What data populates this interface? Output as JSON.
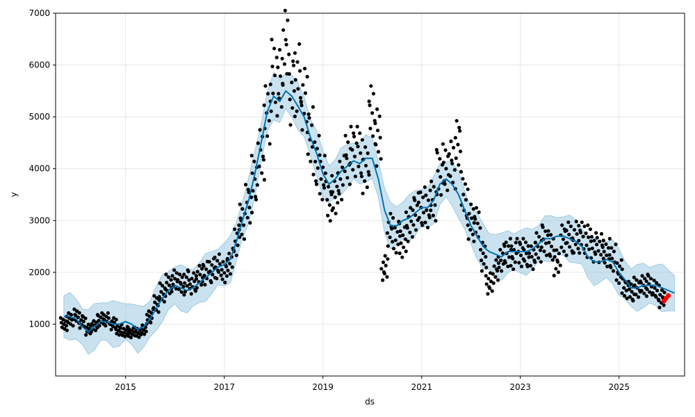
{
  "chart_data": {
    "type": "scatter",
    "title": "",
    "xlabel": "ds",
    "ylabel": "y",
    "xlim": [
      "2013-08-01",
      "2026-05-01"
    ],
    "ylim": [
      0,
      7000
    ],
    "xticks": [
      "2015",
      "2017",
      "2019",
      "2021",
      "2023",
      "2025"
    ],
    "yticks": [
      1000,
      2000,
      3000,
      4000,
      5000,
      6000,
      7000
    ],
    "grid": true,
    "colors": {
      "observed": "#000000",
      "forecast_line": "#0072B2",
      "uncertainty": "#9ecae1",
      "recent_points": "#ff0000"
    },
    "series": [
      {
        "role": "observed",
        "x": [
          "2013-10-01",
          "2013-11-15",
          "2014-01-01",
          "2014-02-15",
          "2014-04-01",
          "2014-05-15",
          "2014-07-01",
          "2014-08-15",
          "2014-10-01",
          "2014-11-15",
          "2015-01-01",
          "2015-02-15",
          "2015-04-01",
          "2015-05-15",
          "2015-07-01",
          "2015-08-15",
          "2015-10-01",
          "2015-11-15",
          "2016-01-01",
          "2016-02-15",
          "2016-04-01",
          "2016-05-15",
          "2016-07-01",
          "2016-08-15",
          "2016-10-01",
          "2016-11-15",
          "2017-01-01",
          "2017-02-15",
          "2017-04-01",
          "2017-05-15",
          "2017-07-01",
          "2017-08-15",
          "2017-10-01",
          "2017-11-15",
          "2018-01-01",
          "2018-02-15",
          "2018-04-01",
          "2018-05-15",
          "2018-07-01",
          "2018-08-15",
          "2018-10-01",
          "2018-11-15",
          "2019-01-01",
          "2019-02-15",
          "2019-04-01",
          "2019-05-15",
          "2019-07-01",
          "2019-08-15",
          "2019-10-01",
          "2019-11-15",
          "2020-01-01",
          "2020-02-15",
          "2020-04-01",
          "2020-05-15",
          "2020-07-01",
          "2020-08-15",
          "2020-10-01",
          "2020-11-15",
          "2021-01-01",
          "2021-02-15",
          "2021-04-01",
          "2021-05-15",
          "2021-07-01",
          "2021-08-15",
          "2021-10-01",
          "2021-11-15",
          "2022-01-01",
          "2022-02-15",
          "2022-04-01",
          "2022-05-15",
          "2022-07-01",
          "2022-08-15",
          "2022-10-01",
          "2022-11-15",
          "2023-01-01",
          "2023-02-15",
          "2023-04-01",
          "2023-05-15",
          "2023-07-01",
          "2023-08-15",
          "2023-10-01",
          "2023-11-15",
          "2024-01-01",
          "2024-02-15",
          "2024-04-01",
          "2024-05-15",
          "2024-07-01",
          "2024-08-15",
          "2024-10-01",
          "2024-11-15",
          "2025-01-01",
          "2025-02-15",
          "2025-04-01",
          "2025-05-15",
          "2025-07-01",
          "2025-08-15",
          "2025-10-01",
          "2025-11-15"
        ],
        "y": [
          1000,
          1100,
          1150,
          1050,
          900,
          950,
          1100,
          1100,
          1000,
          900,
          850,
          830,
          850,
          900,
          1150,
          1400,
          1600,
          1750,
          1850,
          1750,
          1850,
          1800,
          1900,
          2000,
          2050,
          2100,
          2050,
          2200,
          2600,
          3000,
          3300,
          3800,
          4300,
          5000,
          5800,
          5700,
          6300,
          5500,
          5800,
          5300,
          4700,
          4200,
          3800,
          3400,
          3500,
          3800,
          4200,
          4300,
          4300,
          4000,
          5000,
          4600,
          2100,
          2800,
          2700,
          2600,
          2900,
          3200,
          3300,
          3200,
          3400,
          3900,
          4000,
          4100,
          4400,
          3400,
          3000,
          2900,
          2300,
          1800,
          2000,
          2300,
          2400,
          2300,
          2400,
          2400,
          2300,
          2500,
          2600,
          2500,
          2200,
          2600,
          2650,
          2700,
          2650,
          2600,
          2500,
          2450,
          2400,
          2300,
          2000,
          1700,
          1650,
          1700,
          1750,
          1750,
          1650,
          1500
        ]
      },
      {
        "role": "recent",
        "x": [
          "2025-12-01",
          "2025-12-15",
          "2026-01-01"
        ],
        "y": [
          1450,
          1500,
          1550
        ]
      },
      {
        "role": "forecast",
        "x": [
          "2013-10-01",
          "2013-11-15",
          "2014-01-01",
          "2014-02-15",
          "2014-04-01",
          "2014-05-15",
          "2014-07-01",
          "2014-08-15",
          "2014-10-01",
          "2014-11-15",
          "2015-01-01",
          "2015-02-15",
          "2015-04-01",
          "2015-05-15",
          "2015-07-01",
          "2015-08-15",
          "2015-10-01",
          "2015-11-15",
          "2016-01-01",
          "2016-02-15",
          "2016-04-01",
          "2016-05-15",
          "2016-07-01",
          "2016-08-15",
          "2016-10-01",
          "2016-11-15",
          "2017-01-01",
          "2017-02-15",
          "2017-04-01",
          "2017-05-15",
          "2017-07-01",
          "2017-08-15",
          "2017-10-01",
          "2017-11-15",
          "2018-01-01",
          "2018-02-15",
          "2018-04-01",
          "2018-05-15",
          "2018-07-01",
          "2018-08-15",
          "2018-10-01",
          "2018-11-15",
          "2019-01-01",
          "2019-02-15",
          "2019-04-01",
          "2019-05-15",
          "2019-07-01",
          "2019-08-15",
          "2019-10-01",
          "2019-11-15",
          "2020-01-01",
          "2020-02-15",
          "2020-04-01",
          "2020-05-15",
          "2020-07-01",
          "2020-08-15",
          "2020-10-01",
          "2020-11-15",
          "2021-01-01",
          "2021-02-15",
          "2021-04-01",
          "2021-05-15",
          "2021-07-01",
          "2021-08-15",
          "2021-10-01",
          "2021-11-15",
          "2022-01-01",
          "2022-02-15",
          "2022-04-01",
          "2022-05-15",
          "2022-07-01",
          "2022-08-15",
          "2022-10-01",
          "2022-11-15",
          "2023-01-01",
          "2023-02-15",
          "2023-04-01",
          "2023-05-15",
          "2023-07-01",
          "2023-08-15",
          "2023-10-01",
          "2023-11-15",
          "2024-01-01",
          "2024-02-15",
          "2024-04-01",
          "2024-05-15",
          "2024-07-01",
          "2024-08-15",
          "2024-10-01",
          "2024-11-15",
          "2025-01-01",
          "2025-02-15",
          "2025-04-01",
          "2025-05-15",
          "2025-07-01",
          "2025-08-15",
          "2025-10-01",
          "2025-11-15",
          "2026-01-01",
          "2026-02-15"
        ],
        "y": [
          1150,
          1150,
          1100,
          950,
          850,
          950,
          1050,
          1050,
          1000,
          1000,
          1050,
          1000,
          900,
          950,
          1100,
          1300,
          1500,
          1650,
          1750,
          1700,
          1650,
          1700,
          1800,
          1900,
          2000,
          2100,
          2150,
          2250,
          2600,
          3000,
          3400,
          3900,
          4500,
          5100,
          5400,
          5300,
          5500,
          5400,
          5200,
          5000,
          4600,
          4300,
          3900,
          3700,
          3800,
          3950,
          4050,
          4150,
          4100,
          4200,
          4200,
          3800,
          3200,
          2900,
          2900,
          3000,
          3050,
          3150,
          3250,
          3250,
          3400,
          3700,
          3800,
          3700,
          3500,
          3200,
          2900,
          2700,
          2500,
          2400,
          2350,
          2300,
          2400,
          2400,
          2400,
          2400,
          2450,
          2550,
          2650,
          2650,
          2700,
          2700,
          2650,
          2600,
          2500,
          2300,
          2200,
          2200,
          2250,
          2200,
          2000,
          1850,
          1700,
          1700,
          1750,
          1750,
          1750,
          1700,
          1650,
          1600
        ]
      }
    ]
  }
}
